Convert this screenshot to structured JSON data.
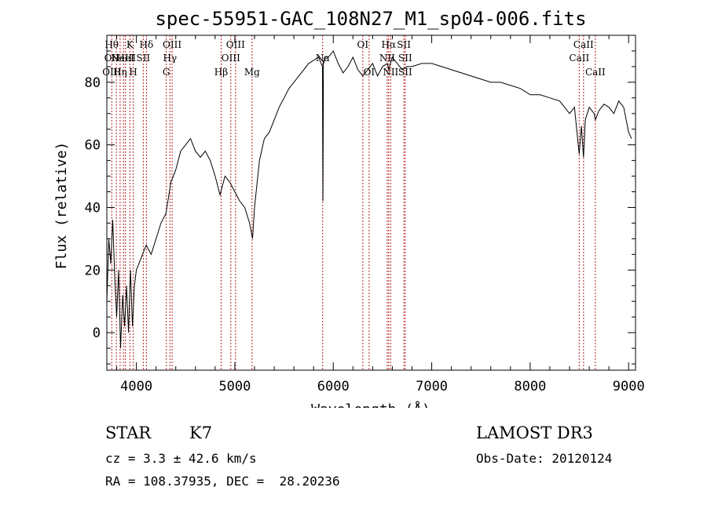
{
  "chart_data": {
    "type": "line",
    "title": "spec-55951-GAC_108N27_M1_sp04-006.fits",
    "xlabel": "Wavelength (Å)",
    "ylabel": "Flux (relative)",
    "xlim": [
      3700,
      9070
    ],
    "ylim": [
      -12,
      95
    ],
    "xticks": [
      4000,
      5000,
      6000,
      7000,
      8000,
      9000
    ],
    "yticks": [
      0,
      20,
      40,
      60,
      80
    ],
    "grid": false,
    "series": [
      {
        "name": "spectrum",
        "x": [
          3700,
          3720,
          3740,
          3760,
          3780,
          3800,
          3820,
          3840,
          3860,
          3880,
          3900,
          3920,
          3940,
          3960,
          3980,
          4000,
          4050,
          4100,
          4150,
          4200,
          4250,
          4300,
          4350,
          4400,
          4450,
          4500,
          4550,
          4600,
          4650,
          4700,
          4750,
          4800,
          4850,
          4900,
          4950,
          5000,
          5050,
          5100,
          5150,
          5180,
          5200,
          5250,
          5300,
          5350,
          5400,
          5450,
          5500,
          5550,
          5600,
          5650,
          5700,
          5750,
          5800,
          5850,
          5890,
          5895,
          5900,
          5905,
          5910,
          5950,
          6000,
          6050,
          6100,
          6150,
          6200,
          6250,
          6300,
          6350,
          6400,
          6450,
          6500,
          6550,
          6563,
          6600,
          6650,
          6700,
          6750,
          6800,
          6900,
          7000,
          7100,
          7200,
          7300,
          7400,
          7500,
          7600,
          7700,
          7800,
          7900,
          8000,
          8100,
          8200,
          8300,
          8400,
          8450,
          8498,
          8520,
          8542,
          8560,
          8580,
          8600,
          8650,
          8662,
          8700,
          8750,
          8800,
          8850,
          8900,
          8950,
          9000,
          9030
        ],
        "y": [
          10,
          30,
          22,
          36,
          18,
          5,
          20,
          -5,
          12,
          2,
          15,
          0,
          20,
          2,
          15,
          20,
          24,
          28,
          25,
          30,
          35,
          38,
          48,
          52,
          58,
          60,
          62,
          58,
          56,
          58,
          55,
          50,
          44,
          50,
          48,
          45,
          42,
          40,
          35,
          30,
          40,
          55,
          62,
          64,
          68,
          72,
          75,
          78,
          80,
          82,
          84,
          86,
          87,
          88,
          85,
          42,
          87,
          86,
          88,
          88,
          90,
          86,
          83,
          85,
          88,
          84,
          82,
          84,
          86,
          82,
          85,
          86,
          84,
          88,
          86,
          84,
          85,
          85,
          86,
          86,
          85,
          84,
          83,
          82,
          81,
          80,
          80,
          79,
          78,
          76,
          76,
          75,
          74,
          70,
          72,
          57,
          66,
          56,
          68,
          70,
          72,
          70,
          68,
          71,
          73,
          72,
          70,
          74,
          72,
          64,
          62
        ]
      }
    ],
    "lines": [
      {
        "x": 3750,
        "top": "Hθ",
        "mid": "OII",
        "low": "OIII"
      },
      {
        "x": 3797,
        "top": "",
        "mid": "",
        "low": ""
      },
      {
        "x": 3835,
        "top": "",
        "mid": "",
        "low": "Hη"
      },
      {
        "x": 3869,
        "top": "",
        "mid": "NeIII",
        "low": ""
      },
      {
        "x": 3889,
        "top": "",
        "mid": "HeI",
        "low": ""
      },
      {
        "x": 3934,
        "top": "K",
        "mid": "",
        "low": ""
      },
      {
        "x": 3968,
        "top": "",
        "mid": "",
        "low": "H"
      },
      {
        "x": 4070,
        "top": "",
        "mid": "SII",
        "low": ""
      },
      {
        "x": 4102,
        "top": "Hδ",
        "mid": "",
        "low": ""
      },
      {
        "x": 4304,
        "top": "",
        "mid": "",
        "low": "G"
      },
      {
        "x": 4341,
        "top": "",
        "mid": "Hγ",
        "low": ""
      },
      {
        "x": 4363,
        "top": "OIII",
        "mid": "",
        "low": ""
      },
      {
        "x": 4861,
        "top": "",
        "mid": "",
        "low": "Hβ"
      },
      {
        "x": 4959,
        "top": "",
        "mid": "OIII",
        "low": ""
      },
      {
        "x": 5007,
        "top": "OIII",
        "mid": "",
        "low": ""
      },
      {
        "x": 5175,
        "top": "",
        "mid": "",
        "low": "Mg"
      },
      {
        "x": 5892,
        "top": "",
        "mid": "Na",
        "low": ""
      },
      {
        "x": 6300,
        "top": "OI",
        "mid": "",
        "low": ""
      },
      {
        "x": 6364,
        "top": "",
        "mid": "",
        "low": "OI"
      },
      {
        "x": 6548,
        "top": "",
        "mid": "NII",
        "low": ""
      },
      {
        "x": 6563,
        "top": "Hα",
        "mid": "",
        "low": ""
      },
      {
        "x": 6583,
        "top": "",
        "mid": "",
        "low": "NII"
      },
      {
        "x": 6717,
        "top": "SII",
        "mid": "",
        "low": ""
      },
      {
        "x": 6731,
        "top": "",
        "mid": "SII",
        "low": "SII"
      },
      {
        "x": 8498,
        "top": "",
        "mid": "CaII",
        "low": ""
      },
      {
        "x": 8542,
        "top": "CaII",
        "mid": "",
        "low": ""
      },
      {
        "x": 8662,
        "top": "",
        "mid": "",
        "low": "CaII"
      }
    ]
  },
  "info": {
    "class_label": "STAR",
    "subclass": "K7",
    "survey": "LAMOST DR3",
    "cz": "cz = 3.3 ± 42.6 km/s",
    "obs_date": "Obs-Date: 20120124",
    "coords": "RA = 108.37935, DEC =  28.20236"
  }
}
